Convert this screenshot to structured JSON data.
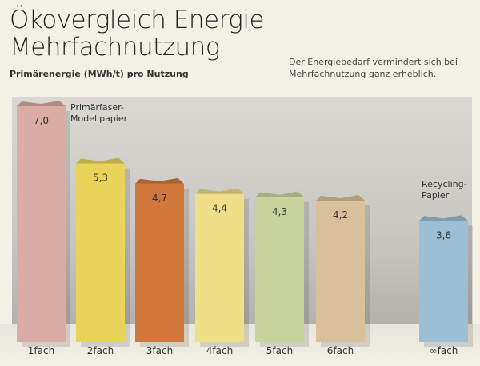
{
  "header": {
    "title_line1": "Ökovergleich Energie",
    "title_line2": "Mehrfachnutzung",
    "subtitle": "Primärenergie (MWh/t) pro Nutzung",
    "note_line1": "Der Energiebedarf vermindert sich bei",
    "note_line2": "Mehrfachnutzung ganz erheblich."
  },
  "annotations": {
    "primary_line1": "Primärfaser-",
    "primary_line2": "Modellpapier",
    "recycling_line1": "Recycling-",
    "recycling_line2": "Papier"
  },
  "chart_data": {
    "type": "bar",
    "title": "Ökovergleich Energie Mehrfachnutzung",
    "ylabel": "Primärenergie (MWh/t) pro Nutzung",
    "xlabel": "",
    "categories": [
      "1fach",
      "2fach",
      "3fach",
      "4fach",
      "5fach",
      "6fach",
      "∞fach"
    ],
    "values": [
      7.0,
      5.3,
      4.7,
      4.4,
      4.3,
      4.2,
      3.6
    ],
    "value_labels": [
      "7,0",
      "5,3",
      "4,7",
      "4,4",
      "4,3",
      "4,2",
      "3,6"
    ],
    "colors": [
      "#d9aca4",
      "#e8d458",
      "#d0783c",
      "#eedf88",
      "#c9d49c",
      "#d9bf9a",
      "#9cbfd6"
    ],
    "ylim": [
      0,
      7.0
    ],
    "grid": false
  }
}
